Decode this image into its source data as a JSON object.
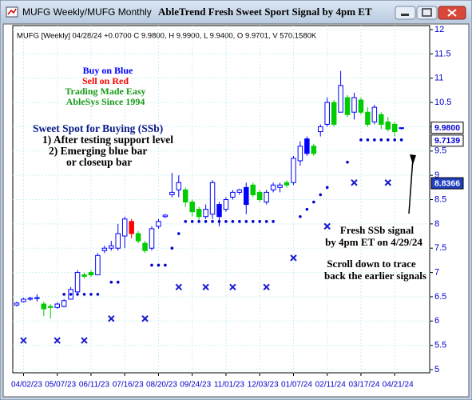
{
  "window_title": "MUFG Weekly/MUFG Monthly",
  "chart_data": {
    "type": "candlestick",
    "title": "AbleTrend Fresh Sweet Sport Signal by 4pm ET",
    "subtitle": "MUFG [Weekly] 04/28/24 +0.0700 C 9.9800, H 9.9900, L 9.9400, O 9.9701, V 570.1580K",
    "categories": [
      null,
      "04/02/23",
      null,
      null,
      null,
      null,
      "05/07/23",
      null,
      null,
      null,
      null,
      "06/11/23",
      null,
      null,
      null,
      null,
      "07/16/23",
      null,
      null,
      null,
      null,
      "08/20/23",
      null,
      null,
      null,
      null,
      "09/24/23",
      null,
      null,
      null,
      null,
      "11/01/23",
      null,
      null,
      null,
      null,
      "12/03/23",
      null,
      null,
      null,
      null,
      "01/07/24",
      null,
      null,
      null,
      null,
      "02/11/24",
      null,
      null,
      null,
      null,
      "03/17/24",
      null,
      null,
      null,
      null,
      "04/21/24",
      null
    ],
    "open": [
      6.33,
      6.4,
      6.45,
      6.47,
      6.35,
      6.3,
      6.28,
      6.3,
      6.45,
      6.6,
      6.95,
      7.0,
      6.95,
      7.45,
      7.5,
      7.5,
      7.75,
      8.05,
      7.8,
      7.6,
      7.5,
      7.95,
      8.15,
      8.6,
      8.7,
      8.7,
      8.45,
      8.3,
      8.15,
      8.2,
      8.4,
      8.3,
      8.55,
      8.65,
      8.75,
      8.8,
      8.65,
      8.45,
      8.7,
      8.75,
      8.85,
      8.85,
      9.3,
      9.75,
      9.6,
      9.9,
      10.05,
      10.5,
      10.3,
      10.6,
      10.3,
      10.55,
      10.3,
      10.1,
      10.25,
      10.1,
      10.05,
      9.9701
    ],
    "high": [
      6.4,
      6.48,
      6.5,
      6.55,
      6.4,
      6.35,
      6.38,
      6.45,
      6.7,
      7.05,
      7.0,
      7.05,
      7.4,
      7.55,
      7.65,
      8.0,
      8.15,
      8.1,
      7.85,
      7.65,
      7.95,
      8.1,
      8.2,
      9.05,
      9.0,
      8.75,
      8.5,
      8.35,
      8.4,
      8.9,
      8.45,
      8.55,
      8.7,
      8.72,
      8.85,
      8.85,
      8.7,
      8.7,
      8.85,
      8.85,
      8.9,
      9.4,
      9.7,
      9.8,
      9.65,
      10.05,
      10.6,
      10.55,
      11.15,
      10.65,
      10.7,
      10.6,
      10.4,
      10.45,
      10.3,
      10.2,
      10.1,
      9.99
    ],
    "low": [
      6.3,
      6.38,
      6.42,
      6.4,
      6.1,
      6.05,
      6.25,
      6.28,
      6.45,
      6.55,
      6.88,
      6.9,
      6.95,
      7.4,
      7.45,
      7.45,
      7.5,
      7.7,
      7.6,
      7.4,
      7.45,
      7.9,
      8.12,
      8.55,
      8.55,
      8.35,
      8.15,
      8.05,
      8.1,
      8.1,
      7.95,
      8.25,
      8.5,
      8.6,
      8.2,
      8.55,
      8.45,
      8.4,
      8.65,
      8.65,
      8.75,
      8.8,
      9.2,
      9.4,
      9.4,
      9.8,
      10.0,
      10.0,
      10.3,
      10.2,
      10.15,
      10.25,
      10.0,
      10.05,
      9.95,
      9.9,
      9.8,
      9.94
    ],
    "close": [
      6.37,
      6.45,
      6.47,
      6.48,
      6.25,
      6.28,
      6.35,
      6.42,
      6.65,
      7.0,
      6.92,
      6.95,
      7.35,
      7.5,
      7.55,
      7.8,
      8.1,
      7.8,
      7.65,
      7.45,
      7.9,
      8.05,
      8.18,
      8.65,
      8.85,
      8.45,
      8.25,
      8.15,
      8.3,
      8.85,
      8.15,
      8.5,
      8.65,
      8.7,
      8.4,
      8.6,
      8.5,
      8.65,
      8.8,
      8.8,
      8.8,
      9.35,
      9.6,
      9.45,
      9.45,
      10.0,
      10.5,
      10.05,
      10.85,
      10.25,
      10.6,
      10.3,
      10.05,
      10.4,
      10.05,
      9.95,
      9.9,
      9.98
    ],
    "colors": [
      "#0000ff",
      "#0000ff",
      "#0000ff",
      "#0000ff",
      "#00cc00",
      "#00cc00",
      "#0000ff",
      "#0000ff",
      "#0000ff",
      "#0000ff",
      "#00cc00",
      "#00cc00",
      "#0000ff",
      "#0000ff",
      "#0000ff",
      "#0000ff",
      "#0000ff",
      "#ff0000",
      "#00cc00",
      "#00cc00",
      "#0000ff",
      "#0000ff",
      "#0000ff",
      "#0000ff",
      "#0000ff",
      "#00cc00",
      "#00cc00",
      "#00cc00",
      "#0000ff",
      "#0000ff",
      "#0000ff",
      "#0000ff",
      "#0000ff",
      "#0000ff",
      "#0000ff",
      "#00cc00",
      "#00cc00",
      "#0000ff",
      "#0000ff",
      "#0000ff",
      "#00cc00",
      "#0000ff",
      "#0000ff",
      "#0000ff",
      "#00cc00",
      "#0000ff",
      "#0000ff",
      "#00cc00",
      "#0000ff",
      "#00cc00",
      "#0000ff",
      "#00cc00",
      "#00cc00",
      "#0000ff",
      "#00cc00",
      "#00cc00",
      "#00cc00",
      "#0000ff"
    ],
    "series": [
      {
        "name": "Support",
        "color": "#0000cc",
        "values": [
          null,
          null,
          null,
          null,
          null,
          null,
          null,
          6.55,
          6.55,
          6.55,
          6.55,
          6.55,
          6.55,
          null,
          6.8,
          6.8,
          null,
          null,
          null,
          null,
          7.15,
          7.15,
          7.15,
          7.5,
          7.8,
          8.05,
          8.05,
          8.05,
          8.05,
          8.05,
          8.05,
          8.05,
          8.05,
          8.05,
          8.05,
          8.05,
          8.05,
          8.05,
          8.05,
          null,
          null,
          null,
          8.15,
          8.3,
          8.45,
          8.6,
          8.75,
          null,
          null,
          9.27,
          null,
          9.73,
          9.73,
          9.73,
          9.73,
          9.73,
          9.73,
          9.73
        ]
      },
      {
        "name": "Stop",
        "color": "#1a1ad0",
        "values": [
          null,
          5.6,
          null,
          null,
          null,
          null,
          5.6,
          null,
          null,
          null,
          5.6,
          null,
          null,
          null,
          6.05,
          null,
          null,
          null,
          null,
          6.05,
          null,
          null,
          null,
          null,
          6.7,
          null,
          null,
          null,
          6.7,
          null,
          null,
          null,
          6.7,
          null,
          null,
          null,
          null,
          6.7,
          null,
          null,
          null,
          7.3,
          null,
          null,
          null,
          null,
          7.95,
          null,
          null,
          null,
          8.85,
          null,
          null,
          null,
          null,
          8.85,
          null,
          null
        ]
      }
    ],
    "ylim": [
      5,
      12
    ],
    "yticks": [
      5,
      5.5,
      6,
      6.5,
      7,
      7.5,
      8,
      8.5,
      9,
      9.5,
      10,
      10.5,
      11,
      11.5,
      12
    ],
    "grid": true,
    "price_tags": [
      {
        "value": 9.98,
        "label": "9.9800",
        "color": "#0000cc",
        "background": "#ffffff"
      },
      {
        "value": 9.7139,
        "label": "9.7139",
        "color": "#0000cc",
        "background": "#ffffff"
      },
      {
        "value": 8.8366,
        "label": "8.8366",
        "color": "#ffffff",
        "background": "#1f3fbf"
      }
    ],
    "annotations": [
      {
        "text": "Buy on Blue",
        "color": "#0000ff"
      },
      {
        "text": "Sell on Red",
        "color": "#ff0000"
      },
      {
        "text": "Trading Made Easy",
        "color": "#1a9a1a"
      },
      {
        "text": "AbleSys Since 1994",
        "color": "#1a9a1a"
      },
      {
        "text": "Sweet Spot for Buying (SSb)",
        "color": "#0a1a8a"
      },
      {
        "text": "1) After testing support level",
        "color": "#000000"
      },
      {
        "text": "2) Emerging blue bar",
        "color": "#000000"
      },
      {
        "text": "or closeup bar",
        "color": "#000000"
      },
      {
        "text": "Fresh SSb signal",
        "color": "#000000"
      },
      {
        "text": "by 4pm ET on 4/29/24",
        "color": "#000000"
      },
      {
        "text": "Scroll down to trace",
        "color": "#000000"
      },
      {
        "text": "back the earlier signals",
        "color": "#000000"
      }
    ]
  }
}
